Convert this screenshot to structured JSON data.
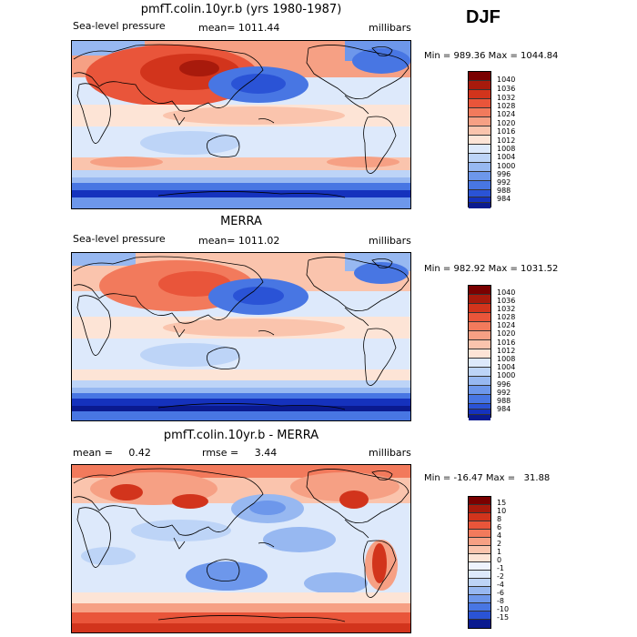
{
  "season_label": "DJF",
  "panels": [
    {
      "title": "pmfT.colin.10yr.b (yrs 1980-1987)",
      "left_label": "Sea-level pressure",
      "center_label": "mean= 1011.44",
      "right_label": "millibars",
      "min_max": "Min = 989.36 Max = 1044.84",
      "style": "abs"
    },
    {
      "title": "MERRA",
      "left_label": "Sea-level pressure",
      "center_label": "mean= 1011.02",
      "right_label": "millibars",
      "min_max": "Min = 982.92 Max = 1031.52",
      "style": "abs"
    },
    {
      "title": "pmfT.colin.10yr.b - MERRA",
      "left_label": "mean =     0.42",
      "center_label": "rmse =     3.44",
      "right_label": "millibars",
      "min_max": "Min = -16.47 Max =   31.88",
      "style": "diff"
    }
  ],
  "chart_data": [
    {
      "type": "heatmap",
      "title": "pmfT.colin.10yr.b (yrs 1980-1987)",
      "variable": "Sea-level pressure",
      "units": "millibars",
      "mean": 1011.44,
      "min": 989.36,
      "max": 1044.84,
      "colorbar_levels": [
        1040,
        1036,
        1032,
        1028,
        1024,
        1020,
        1016,
        1012,
        1008,
        1004,
        1000,
        996,
        992,
        988,
        984
      ]
    },
    {
      "type": "heatmap",
      "title": "MERRA",
      "variable": "Sea-level pressure",
      "units": "millibars",
      "mean": 1011.02,
      "min": 982.92,
      "max": 1031.52,
      "colorbar_levels": [
        1040,
        1036,
        1032,
        1028,
        1024,
        1020,
        1016,
        1012,
        1008,
        1004,
        1000,
        996,
        992,
        988,
        984
      ]
    },
    {
      "type": "heatmap",
      "title": "pmfT.colin.10yr.b - MERRA",
      "units": "millibars",
      "mean": 0.42,
      "rmse": 3.44,
      "min": -16.47,
      "max": 31.88,
      "colorbar_levels": [
        15,
        10,
        8,
        6,
        4,
        2,
        1,
        0,
        -1,
        -2,
        -4,
        -6,
        -8,
        -10,
        -15
      ]
    }
  ],
  "colors": {
    "abs_scale": [
      "#7a0000",
      "#a81a0c",
      "#d2341c",
      "#e9553a",
      "#f27a5c",
      "#f6a084",
      "#fac4ad",
      "#fde4d6",
      "#dde9fb",
      "#bdd4f7",
      "#97b8f1",
      "#6d97eb",
      "#4876e3",
      "#2a53d6",
      "#1532bd",
      "#0a1a8f"
    ],
    "diff_scale": [
      "#7a0000",
      "#a81a0c",
      "#d2341c",
      "#e9553a",
      "#f27a5c",
      "#f6a084",
      "#fac4ad",
      "#fde4d6",
      "#eef3fd",
      "#dde9fb",
      "#bdd4f7",
      "#97b8f1",
      "#6d97eb",
      "#4876e3",
      "#2a53d6",
      "#0a1a8f"
    ]
  }
}
